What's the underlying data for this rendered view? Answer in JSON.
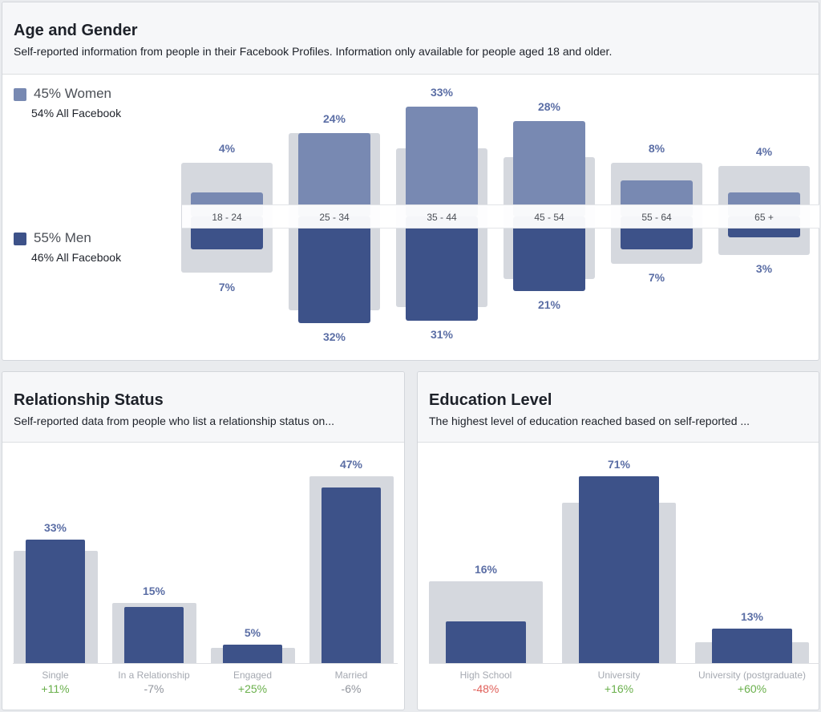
{
  "colors": {
    "women": "#7889b2",
    "men": "#3d5289",
    "all_facebook": "#d5d8de",
    "label": "#5b6ea5",
    "positive": "#6ab04c",
    "negative": "#e0605a",
    "neutral": "#90949c"
  },
  "age_gender": {
    "title": "Age and Gender",
    "subtitle": "Self-reported information from people in their Facebook Profiles. Information only available for people aged 18 and older.",
    "legend": {
      "women": {
        "label": "45% Women",
        "sub": "54% All Facebook"
      },
      "men": {
        "label": "55% Men",
        "sub": "46% All Facebook"
      }
    }
  },
  "relationship": {
    "title": "Relationship Status",
    "subtitle": "Self-reported data from people who list a relationship status on..."
  },
  "education": {
    "title": "Education Level",
    "subtitle": "The highest level of education reached based on self-reported ..."
  },
  "chart_data": [
    {
      "type": "bar",
      "title": "Age and Gender",
      "categories": [
        "18 - 24",
        "25 - 34",
        "35 - 44",
        "45 - 54",
        "55 - 64",
        "65 +"
      ],
      "series": [
        {
          "name": "Women",
          "values": [
            4,
            24,
            33,
            28,
            8,
            4
          ],
          "labels": [
            "4%",
            "24%",
            "33%",
            "28%",
            "8%",
            "4%"
          ]
        },
        {
          "name": "Men",
          "values": [
            7,
            32,
            31,
            21,
            7,
            3
          ],
          "labels": [
            "7%",
            "32%",
            "31%",
            "21%",
            "7%",
            "3%"
          ]
        },
        {
          "name": "All Facebook Women",
          "values": [
            14,
            24,
            19,
            16,
            14,
            13
          ]
        },
        {
          "name": "All Facebook Men",
          "values": [
            15,
            27.5,
            26.5,
            17,
            12,
            9
          ]
        }
      ]
    },
    {
      "type": "bar",
      "title": "Relationship Status",
      "categories": [
        "Single",
        "In a Relationship",
        "Engaged",
        "Married"
      ],
      "values": [
        33,
        15,
        5,
        47
      ],
      "labels": [
        "33%",
        "15%",
        "5%",
        "47%"
      ],
      "all_facebook": [
        30,
        16,
        4,
        50
      ],
      "changes": [
        "+11%",
        "-7%",
        "+25%",
        "-6%"
      ],
      "change_types": [
        "positive",
        "neutral",
        "positive",
        "neutral"
      ]
    },
    {
      "type": "bar",
      "title": "Education Level",
      "categories": [
        "High School",
        "University",
        "University (postgraduate)"
      ],
      "values": [
        16,
        71,
        13
      ],
      "labels": [
        "16%",
        "71%",
        "13%"
      ],
      "all_facebook": [
        31,
        61,
        8
      ],
      "changes": [
        "-48%",
        "+16%",
        "+60%"
      ],
      "change_types": [
        "negative",
        "positive",
        "positive"
      ]
    }
  ]
}
